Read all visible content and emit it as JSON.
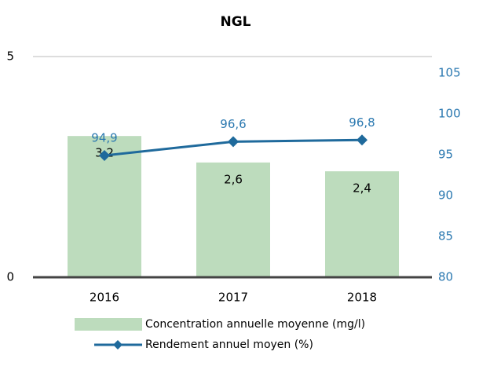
{
  "chart_data": {
    "type": "bar_line",
    "title": "NGL",
    "categories": [
      "2016",
      "2017",
      "2018"
    ],
    "series": [
      {
        "name": "Concentration annuelle moyenne (mg/l)",
        "type": "bar",
        "axis": "y",
        "color": "#bddcbd",
        "values": [
          3.2,
          2.6,
          2.4
        ],
        "value_labels": [
          "3,2",
          "2,6",
          "2,4"
        ]
      },
      {
        "name": "Rendement annuel moyen (%)",
        "type": "line",
        "axis": "y2",
        "color": "#1f6a9c",
        "values": [
          94.9,
          96.6,
          96.8
        ],
        "value_labels": [
          "94,9",
          "96,6",
          "96,8"
        ]
      }
    ],
    "ylim": [
      0,
      5
    ],
    "yticks": [
      0,
      5
    ],
    "y2lim": [
      80,
      105
    ],
    "y2ticks": [
      80,
      85,
      90,
      95,
      100,
      105
    ],
    "grid": true,
    "legend": "bottom"
  }
}
